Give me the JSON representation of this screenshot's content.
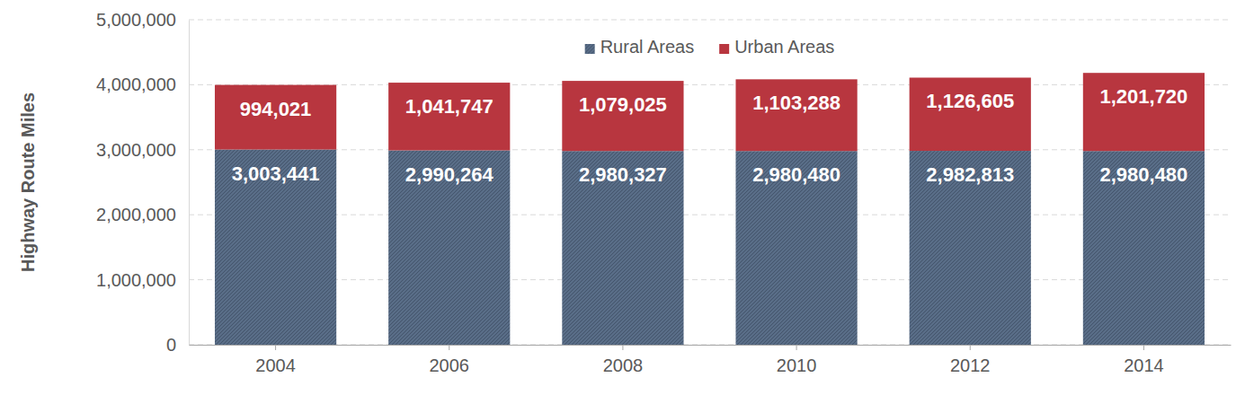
{
  "chart_data": {
    "type": "bar",
    "stacked": true,
    "data_labels": true,
    "grid": true,
    "legend": "top",
    "y_label": "Highway Route Miles",
    "categories": [
      "2004",
      "2006",
      "2008",
      "2010",
      "2012",
      "2014"
    ],
    "series": [
      {
        "name": "Rural Areas",
        "color": "#596d87",
        "values": [
          3003441,
          2990264,
          2980327,
          2980480,
          2982813,
          2980480
        ],
        "value_labels": [
          "3,003,441",
          "2,990,264",
          "2,980,327",
          "2,980,480",
          "2,982,813",
          "2,980,480"
        ]
      },
      {
        "name": "Urban Areas",
        "color": "#b8363f",
        "values": [
          994021,
          1041747,
          1079025,
          1103288,
          1126605,
          1201720
        ],
        "value_labels": [
          "994,021",
          "1,041,747",
          "1,079,025",
          "1,103,288",
          "1,126,605",
          "1,201,720"
        ]
      }
    ],
    "ylim": [
      0,
      5000000
    ],
    "yticks": [
      {
        "value": 0,
        "label": "0"
      },
      {
        "value": 1000000,
        "label": "1,000,000"
      },
      {
        "value": 2000000,
        "label": "2,000,000"
      },
      {
        "value": 3000000,
        "label": "3,000,000"
      },
      {
        "value": 4000000,
        "label": "4,000,000"
      },
      {
        "value": 5000000,
        "label": "5,000,000"
      }
    ]
  }
}
